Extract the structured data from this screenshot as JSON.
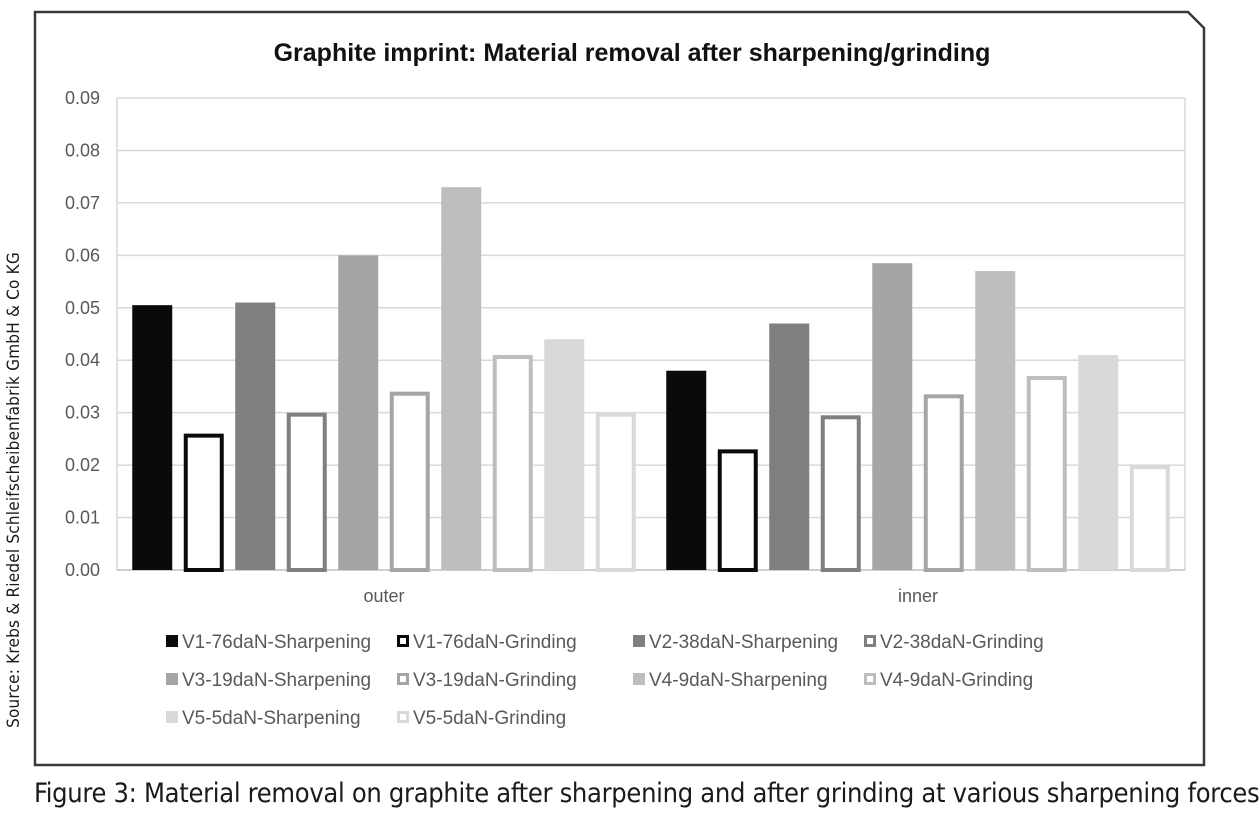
{
  "source": "Source: Krebs & Riedel Schleifscheibenfabrik GmbH & Co KG",
  "caption": "Figure 3: Material removal on graphite after sharpening and after grinding at various sharpening forces",
  "chart_data": {
    "type": "bar",
    "title": "Graphite imprint: Material removal after sharpening/grinding",
    "xlabel": "",
    "ylabel": "",
    "categories": [
      "outer",
      "inner"
    ],
    "ylim": [
      0,
      0.09
    ],
    "yticks": [
      "0.00",
      "0.01",
      "0.02",
      "0.03",
      "0.04",
      "0.05",
      "0.06",
      "0.07",
      "0.08",
      "0.09"
    ],
    "grid": true,
    "legend_position": "bottom",
    "series": [
      {
        "name": "V1-76daN-Sharpening",
        "values": [
          0.0505,
          0.038
        ],
        "style": "filled",
        "color": "#0a0a0a"
      },
      {
        "name": "V1-76daN-Grinding",
        "values": [
          0.026,
          0.023
        ],
        "style": "outline",
        "color": "#0a0a0a"
      },
      {
        "name": "V2-38daN-Sharpening",
        "values": [
          0.051,
          0.047
        ],
        "style": "filled",
        "color": "#7f7f7f"
      },
      {
        "name": "V2-38daN-Grinding",
        "values": [
          0.03,
          0.0295
        ],
        "style": "outline",
        "color": "#7f7f7f"
      },
      {
        "name": "V3-19daN-Sharpening",
        "values": [
          0.06,
          0.0585
        ],
        "style": "filled",
        "color": "#a5a5a5"
      },
      {
        "name": "V3-19daN-Grinding",
        "values": [
          0.034,
          0.0335
        ],
        "style": "outline",
        "color": "#a5a5a5"
      },
      {
        "name": "V4-9daN-Sharpening",
        "values": [
          0.073,
          0.057
        ],
        "style": "filled",
        "color": "#bfbebe"
      },
      {
        "name": "V4-9daN-Grinding",
        "values": [
          0.041,
          0.037
        ],
        "style": "outline",
        "color": "#bfbebe"
      },
      {
        "name": "V5-5daN-Sharpening",
        "values": [
          0.044,
          0.041
        ],
        "style": "filled",
        "color": "#d9d9d9"
      },
      {
        "name": "V5-5daN-Grinding",
        "values": [
          0.03,
          0.02
        ],
        "style": "outline",
        "color": "#d9d9d9"
      }
    ]
  }
}
